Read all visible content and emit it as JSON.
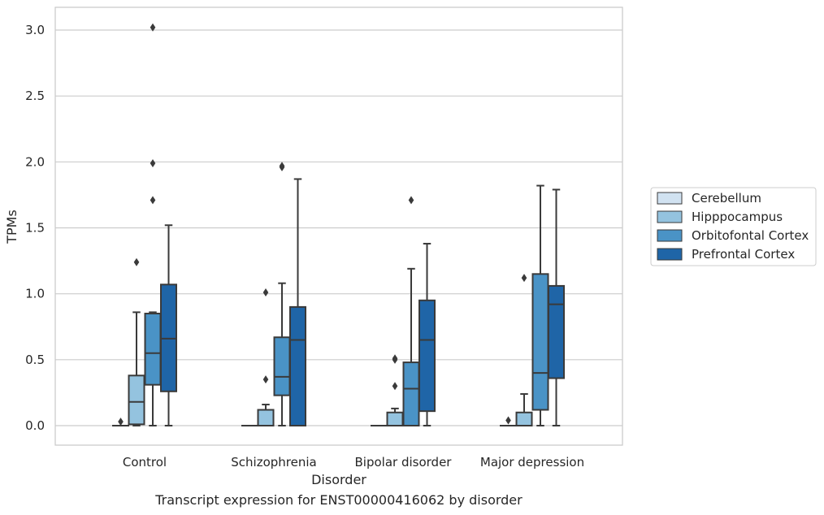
{
  "chart_data": {
    "type": "box",
    "xlabel": "Disorder",
    "ylabel": "TPMs",
    "ylim": [
      -0.15,
      3.18
    ],
    "yticks": [
      0.0,
      0.5,
      1.0,
      1.5,
      2.0,
      2.5,
      3.0
    ],
    "grid": "horizontal",
    "legend_position": "right",
    "categories": [
      "Control",
      "Schizophrenia",
      "Bipolar disorder",
      "Major depression"
    ],
    "series": [
      {
        "name": "Cerebellum",
        "color": "#d1e2f1",
        "boxes": [
          {
            "category": "Control",
            "whisker_low": 0.0,
            "q1": 0.0,
            "median": 0.0,
            "q3": 0.0,
            "whisker_high": 0.0,
            "outliers": [
              0.03
            ]
          },
          {
            "category": "Schizophrenia",
            "whisker_low": 0.0,
            "q1": 0.0,
            "median": 0.0,
            "q3": 0.0,
            "whisker_high": 0.0,
            "outliers": []
          },
          {
            "category": "Bipolar disorder",
            "whisker_low": 0.0,
            "q1": 0.0,
            "median": 0.0,
            "q3": 0.0,
            "whisker_high": 0.0,
            "outliers": []
          },
          {
            "category": "Major depression",
            "whisker_low": 0.0,
            "q1": 0.0,
            "median": 0.0,
            "q3": 0.0,
            "whisker_high": 0.0,
            "outliers": [
              0.04
            ]
          }
        ]
      },
      {
        "name": "Hipppocampus",
        "color": "#94c3df",
        "boxes": [
          {
            "category": "Control",
            "whisker_low": 0.0,
            "q1": 0.01,
            "median": 0.18,
            "q3": 0.38,
            "whisker_high": 0.86,
            "outliers": [
              1.24
            ]
          },
          {
            "category": "Schizophrenia",
            "whisker_low": 0.0,
            "q1": 0.0,
            "median": 0.0,
            "q3": 0.12,
            "whisker_high": 0.16,
            "outliers": [
              0.35,
              1.01
            ]
          },
          {
            "category": "Bipolar disorder",
            "whisker_low": 0.0,
            "q1": 0.0,
            "median": 0.0,
            "q3": 0.1,
            "whisker_high": 0.13,
            "outliers": [
              0.3,
              0.5,
              0.51
            ]
          },
          {
            "category": "Major depression",
            "whisker_low": 0.0,
            "q1": 0.0,
            "median": 0.0,
            "q3": 0.1,
            "whisker_high": 0.24,
            "outliers": [
              1.12
            ]
          }
        ]
      },
      {
        "name": "Orbitofontal Cortex",
        "color": "#4a93c6",
        "boxes": [
          {
            "category": "Control",
            "whisker_low": 0.0,
            "q1": 0.31,
            "median": 0.55,
            "q3": 0.85,
            "whisker_high": 0.86,
            "outliers": [
              1.71,
              1.99,
              3.02
            ]
          },
          {
            "category": "Schizophrenia",
            "whisker_low": 0.0,
            "q1": 0.23,
            "median": 0.37,
            "q3": 0.67,
            "whisker_high": 1.08,
            "outliers": [
              1.96,
              1.97
            ]
          },
          {
            "category": "Bipolar disorder",
            "whisker_low": 0.0,
            "q1": 0.0,
            "median": 0.28,
            "q3": 0.48,
            "whisker_high": 1.19,
            "outliers": [
              1.71
            ]
          },
          {
            "category": "Major depression",
            "whisker_low": 0.0,
            "q1": 0.12,
            "median": 0.4,
            "q3": 1.15,
            "whisker_high": 1.82,
            "outliers": []
          }
        ]
      },
      {
        "name": "Prefrontal Cortex",
        "color": "#1f65a7",
        "boxes": [
          {
            "category": "Control",
            "whisker_low": 0.0,
            "q1": 0.26,
            "median": 0.66,
            "q3": 1.07,
            "whisker_high": 1.52,
            "outliers": []
          },
          {
            "category": "Schizophrenia",
            "whisker_low": 0.0,
            "q1": 0.0,
            "median": 0.65,
            "q3": 0.9,
            "whisker_high": 1.87,
            "outliers": []
          },
          {
            "category": "Bipolar disorder",
            "whisker_low": 0.0,
            "q1": 0.11,
            "median": 0.65,
            "q3": 0.95,
            "whisker_high": 1.38,
            "outliers": []
          },
          {
            "category": "Major depression",
            "whisker_low": 0.0,
            "q1": 0.36,
            "median": 0.92,
            "q3": 1.06,
            "whisker_high": 1.79,
            "outliers": []
          }
        ]
      }
    ]
  },
  "caption": "Transcript expression for ENST00000416062 by disorder"
}
